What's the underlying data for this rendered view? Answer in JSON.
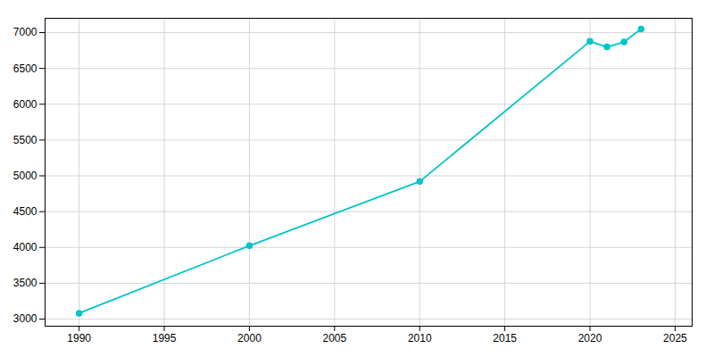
{
  "chart_data": {
    "type": "line",
    "x": [
      1990,
      2000,
      2010,
      2020,
      2021,
      2022,
      2023
    ],
    "values": [
      3082,
      4024,
      4921,
      6878,
      6800,
      6869,
      7050
    ],
    "color": "#00C5C8",
    "marker": "circle",
    "xlim": [
      1988,
      2026
    ],
    "ylim": [
      2900,
      7200
    ],
    "xticks": [
      1990,
      1995,
      2000,
      2005,
      2010,
      2015,
      2020,
      2025
    ],
    "yticks": [
      3000,
      3500,
      4000,
      4500,
      5000,
      5500,
      6000,
      6500,
      7000
    ],
    "grid": true
  }
}
